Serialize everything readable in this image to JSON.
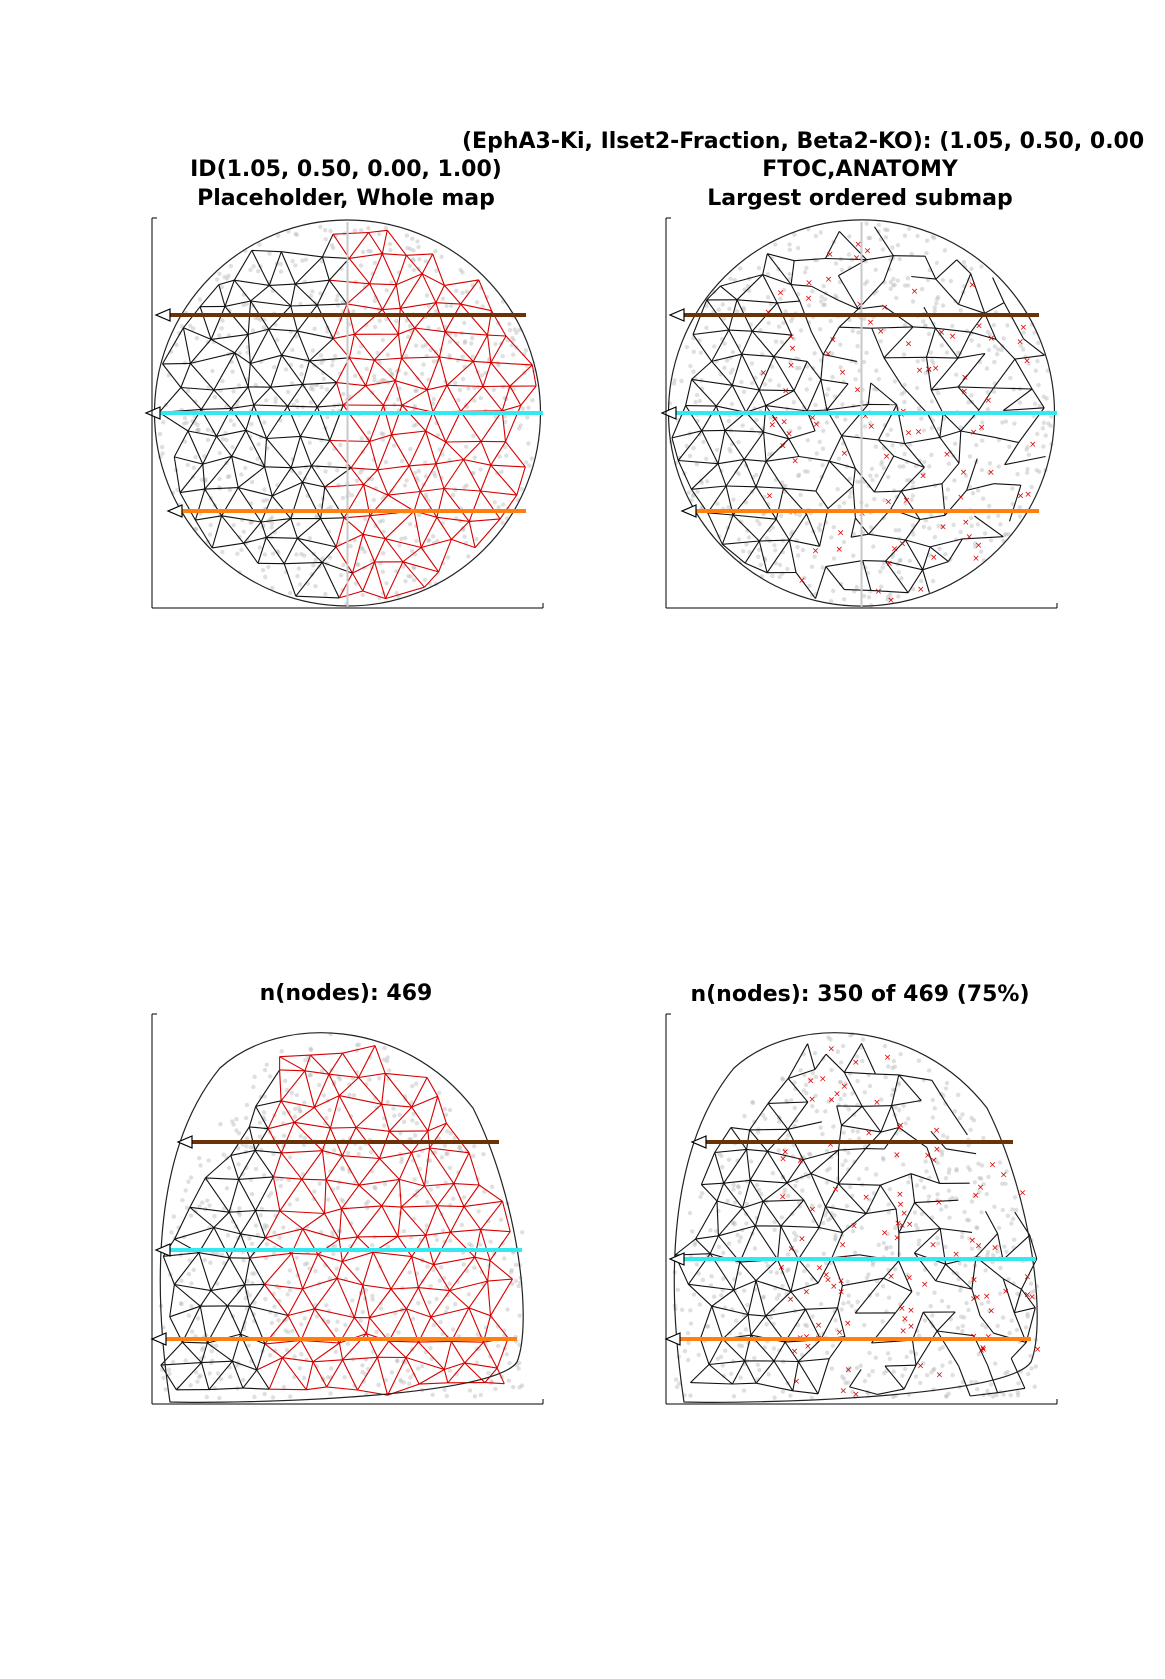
{
  "figure": {
    "suptitle": "(EphA3-Ki, Ilset2-Fraction, Beta2-KO): (1.05, 0.50, 0.00",
    "panels": [
      {
        "title_lines": [
          "ID(1.05, 0.50, 0.00, 1.00)",
          "Placeholder, Whole map"
        ]
      },
      {
        "title_lines": [
          "FTOC,ANATOMY",
          "Largest ordered submap"
        ]
      },
      {
        "title_lines": [
          "n(nodes): 469"
        ]
      },
      {
        "title_lines": [
          "n(nodes): 350 of 469 (75%)"
        ]
      }
    ]
  },
  "colors": {
    "ordered_mesh": "#111111",
    "disordered_mesh": "#d40000",
    "excluded_marker": "#e00000",
    "background_points": "#b8b8b8",
    "outline": "#222222",
    "line_brown": "#6b3208",
    "line_cyan": "#33e8ee",
    "line_orange": "#ff7f10"
  }
}
